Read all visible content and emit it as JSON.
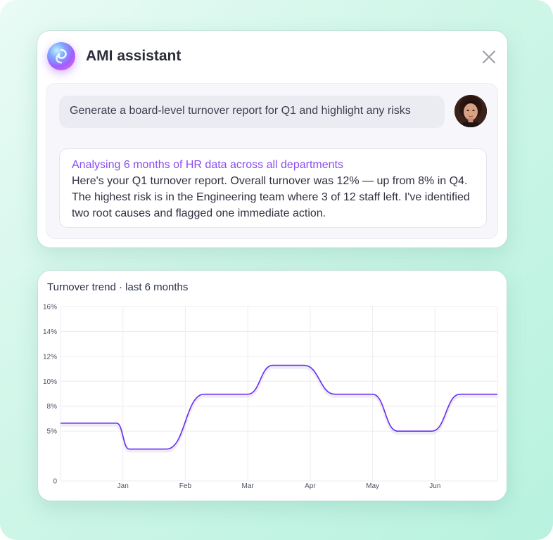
{
  "assistant": {
    "logo_icon": "swirl-logo-icon",
    "title": "AMI assistant",
    "close_icon": "close-icon",
    "prompt_text": "Generate a board-level turnover report for Q1 and highlight any risks",
    "avatar_icon": "user-avatar",
    "response": {
      "heading": "Analysing 6 months of HR data across all departments",
      "body": "Here's your Q1 turnover report. Overall turnover was 12% — up from 8% in Q4. The highest risk is in the Engineering team where 3 of 12 staff left. I've identified two root causes and flagged one immediate action."
    },
    "colors": {
      "accent": "#8a4dee",
      "text": "#2f3140"
    }
  },
  "chart": {
    "title": "Turnover trend · last 6 months"
  },
  "chart_data": {
    "type": "line",
    "title": "Turnover trend · last 6 months",
    "xlabel": "",
    "ylabel": "",
    "categories": [
      "Jan",
      "Feb",
      "Mar",
      "Apr",
      "May",
      "Jun"
    ],
    "yticks": [
      "0",
      "5%",
      "8%",
      "10%",
      "12%",
      "14%",
      "16%"
    ],
    "ylim": [
      0,
      16
    ],
    "grid": true,
    "line_color": "#6a2cf0",
    "series": [
      {
        "x": [
          0,
          0.9,
          1.1,
          1.7,
          2.3,
          3.0,
          3.4,
          3.9,
          4.4,
          5.0,
          5.4,
          5.95,
          6.4,
          7.0
        ],
        "y": [
          5.8,
          5.8,
          3.2,
          3.2,
          8.7,
          8.7,
          11.6,
          11.6,
          8.7,
          8.7,
          5.0,
          5.0,
          8.7,
          8.7
        ]
      }
    ]
  }
}
